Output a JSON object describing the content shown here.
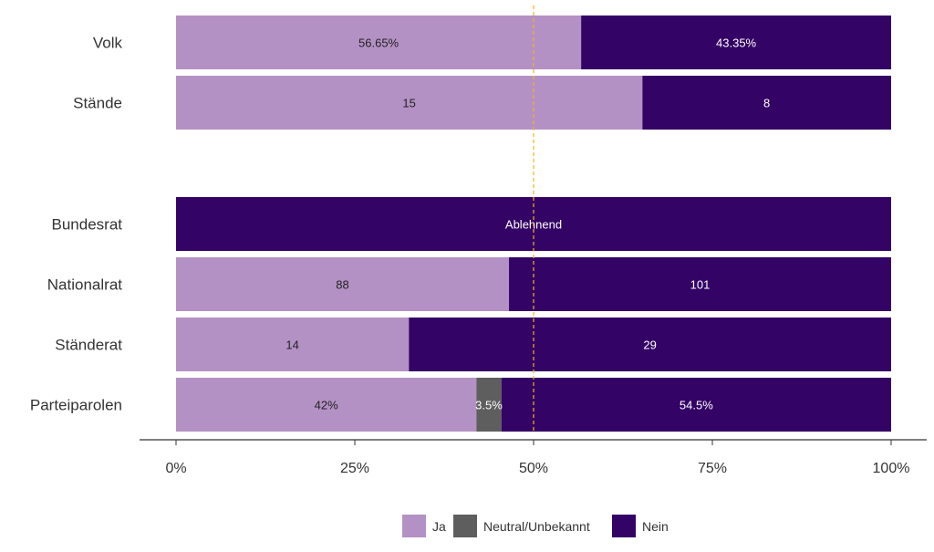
{
  "chart_data": {
    "type": "bar",
    "orientation": "horizontal",
    "stacked": "percent",
    "categories": [
      "Volk",
      "Stände",
      "Bundesrat",
      "Nationalrat",
      "Ständerat",
      "Parteiparolen"
    ],
    "series": [
      {
        "name": "Ja",
        "color": "#b491c4",
        "values": [
          56.65,
          65.22,
          0,
          46.56,
          32.56,
          42.0
        ]
      },
      {
        "name": "Neutral/Unbekannt",
        "color": "#5e5e5e",
        "values": [
          0,
          0,
          0,
          0,
          0,
          3.5
        ]
      },
      {
        "name": "Nein",
        "color": "#330365",
        "values": [
          43.35,
          34.78,
          100,
          53.44,
          67.44,
          54.5
        ]
      }
    ],
    "data_labels": [
      [
        "56.65%",
        "",
        "43.35%"
      ],
      [
        "15",
        "",
        "8"
      ],
      [
        "",
        "",
        "Ablehnend"
      ],
      [
        "88",
        "",
        "101"
      ],
      [
        "14",
        "",
        "29"
      ],
      [
        "42%",
        "3.5%",
        "54.5%"
      ]
    ],
    "label_colors": {
      "Ja": "#222222",
      "Neutral/Unbekannt": "#ffffff",
      "Nein": "#ffffff"
    },
    "xlim": [
      0,
      100
    ],
    "x_ticks": [
      "0%",
      "25%",
      "50%",
      "75%",
      "100%"
    ],
    "reference_line": {
      "x": 50,
      "style": "dashed",
      "color": "#f0b41e"
    },
    "legend": {
      "position": "bottom",
      "entries": [
        "Ja",
        "Neutral/Unbekannt",
        "Nein"
      ]
    },
    "grid": false
  }
}
